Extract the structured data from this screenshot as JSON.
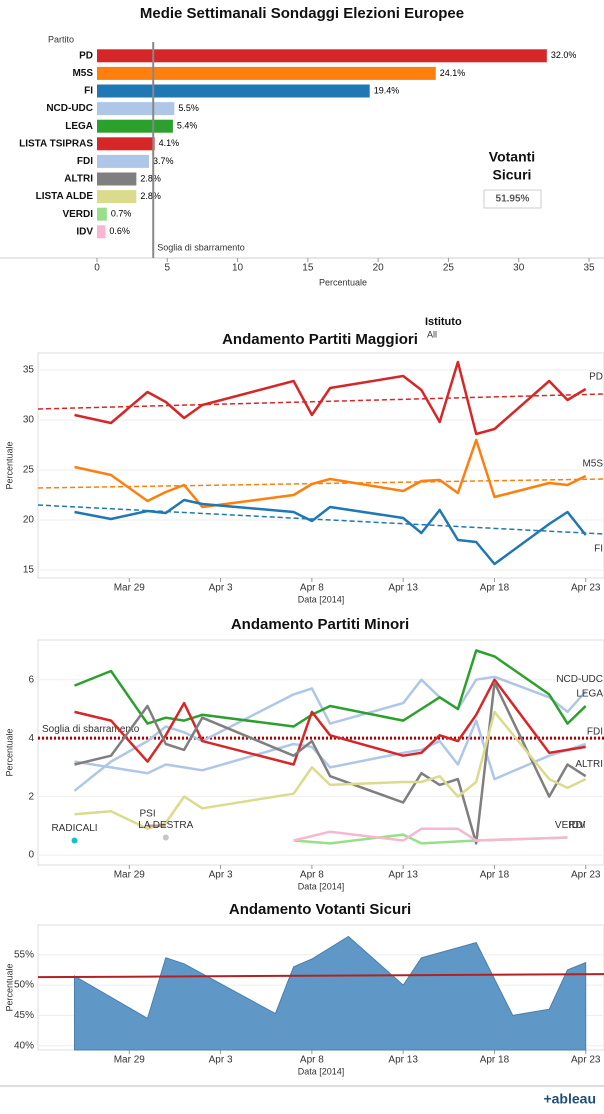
{
  "chart_data": [
    {
      "type": "hbar",
      "title": "Medie Settimanali Sondaggi Elezioni Europee",
      "category_header": "Partito",
      "categories": [
        "PD",
        "M5S",
        "FI",
        "NCD-UDC",
        "LEGA",
        "LISTA TSIPRAS",
        "FDI",
        "ALTRI",
        "LISTA ALDE",
        "VERDI",
        "IDV"
      ],
      "values": [
        32.0,
        24.1,
        19.4,
        5.5,
        5.4,
        4.1,
        3.7,
        2.8,
        2.8,
        0.7,
        0.6
      ],
      "value_labels": [
        "32.0%",
        "24.1%",
        "19.4%",
        "5.5%",
        "5.4%",
        "4.1%",
        "3.7%",
        "2.8%",
        "2.8%",
        "0.7%",
        "0.6%"
      ],
      "colors": [
        "#d62728",
        "#ff7f0e",
        "#1f77b4",
        "#aec7e8",
        "#2ca02c",
        "#d62728",
        "#aec7e8",
        "#7f7f7f",
        "#dbdb8d",
        "#98df8a",
        "#f7b6d2"
      ],
      "xlim": [
        0,
        35
      ],
      "xticks": [
        0,
        5,
        10,
        15,
        20,
        25,
        30,
        35
      ],
      "xlabel": "Percentuale",
      "reference": {
        "value": 4,
        "label": "Soglia di sbarramento"
      },
      "kpi_title": [
        "Votanti",
        "Sicuri"
      ],
      "kpi": {
        "value": 51.95,
        "label": "51.95%"
      }
    },
    {
      "type": "line",
      "title": "Andamento Partiti Maggiori",
      "filter": {
        "label": "Istituto",
        "value": "All"
      },
      "x": [
        "2014-03-26",
        "2014-03-28",
        "2014-03-30",
        "2014-03-31",
        "2014-04-01",
        "2014-04-02",
        "2014-04-07",
        "2014-04-08",
        "2014-04-09",
        "2014-04-13",
        "2014-04-14",
        "2014-04-15",
        "2014-04-16",
        "2014-04-17",
        "2014-04-18",
        "2014-04-21",
        "2014-04-22",
        "2014-04-23"
      ],
      "xlim": [
        "2014-03-24",
        "2014-04-24"
      ],
      "xticks": [
        {
          "value": "2014-03-29",
          "label": "Mar 29"
        },
        {
          "value": "2014-04-03",
          "label": "Apr 3"
        },
        {
          "value": "2014-04-08",
          "label": "Apr 8"
        },
        {
          "value": "2014-04-13",
          "label": "Apr 13"
        },
        {
          "value": "2014-04-18",
          "label": "Apr 18"
        },
        {
          "value": "2014-04-23",
          "label": "Apr 23"
        }
      ],
      "xlabel": "Data [2014]",
      "ylabel": "Percentuale",
      "ylim": [
        14.2,
        36.7
      ],
      "yticks": [
        15,
        20,
        25,
        30,
        35
      ],
      "grid": true,
      "series": [
        {
          "name": "PD",
          "color": "#d62728",
          "values": [
            30.5,
            29.7,
            32.8,
            31.8,
            30.2,
            31.5,
            33.9,
            30.5,
            33.2,
            34.4,
            33.0,
            29.8,
            35.8,
            28.6,
            29.1,
            33.9,
            32.0,
            33.1
          ],
          "trend": [
            31.1,
            32.6
          ]
        },
        {
          "name": "M5S",
          "color": "#ff7f0e",
          "values": [
            25.3,
            24.5,
            21.9,
            22.8,
            23.5,
            21.3,
            22.5,
            23.6,
            24.1,
            22.9,
            23.9,
            24.0,
            22.7,
            28.0,
            22.3,
            23.7,
            23.5,
            24.4
          ],
          "trend": [
            23.2,
            24.1
          ]
        },
        {
          "name": "FI",
          "color": "#1f77b4",
          "values": [
            20.8,
            20.1,
            20.9,
            20.7,
            22.0,
            21.6,
            20.8,
            19.9,
            21.3,
            20.2,
            18.7,
            21.0,
            18.0,
            17.8,
            15.6,
            19.6,
            20.8,
            18.5
          ],
          "trend": [
            21.5,
            18.6
          ]
        }
      ]
    },
    {
      "type": "line",
      "title": "Andamento Partiti Minori",
      "x": [
        "2014-03-26",
        "2014-03-28",
        "2014-03-30",
        "2014-03-31",
        "2014-04-01",
        "2014-04-02",
        "2014-04-07",
        "2014-04-08",
        "2014-04-09",
        "2014-04-13",
        "2014-04-14",
        "2014-04-15",
        "2014-04-16",
        "2014-04-17",
        "2014-04-18",
        "2014-04-21",
        "2014-04-22",
        "2014-04-23"
      ],
      "xlim": [
        "2014-03-24",
        "2014-04-24"
      ],
      "xticks": [
        {
          "value": "2014-03-29",
          "label": "Mar 29"
        },
        {
          "value": "2014-04-03",
          "label": "Apr 3"
        },
        {
          "value": "2014-04-08",
          "label": "Apr 8"
        },
        {
          "value": "2014-04-13",
          "label": "Apr 13"
        },
        {
          "value": "2014-04-18",
          "label": "Apr 18"
        },
        {
          "value": "2014-04-23",
          "label": "Apr 23"
        }
      ],
      "xlabel": "Data [2014]",
      "ylabel": "Percentuale",
      "ylim": [
        -0.34,
        7.36
      ],
      "yticks": [
        0,
        2,
        4,
        6
      ],
      "grid": true,
      "reference": {
        "value": 4,
        "label": "Soglia di sbarramento"
      },
      "series": [
        {
          "name": "NCD-UDC",
          "color": "#aec7e8",
          "values": [
            2.2,
            3.2,
            3.9,
            4.4,
            4.2,
            3.9,
            5.5,
            5.7,
            4.5,
            5.2,
            6.0,
            5.4,
            5.0,
            6.0,
            6.1,
            5.4,
            4.9,
            5.6
          ]
        },
        {
          "name": "LEGA",
          "color": "#2ca02c",
          "values": [
            5.8,
            6.3,
            4.5,
            4.7,
            4.6,
            4.8,
            4.4,
            4.8,
            5.1,
            4.6,
            5.0,
            5.4,
            5.0,
            7.0,
            6.8,
            5.5,
            4.5,
            5.1
          ]
        },
        {
          "name": "FDI",
          "color": "#aec7e8",
          "values": [
            3.2,
            3.0,
            2.8,
            3.1,
            3.0,
            2.9,
            3.8,
            3.7,
            3.0,
            3.5,
            3.6,
            3.9,
            3.1,
            4.6,
            2.6,
            3.4,
            3.6,
            3.8
          ]
        },
        {
          "color": "#d62728",
          "values": [
            4.9,
            4.6,
            3.2,
            4.1,
            5.2,
            3.9,
            3.1,
            4.9,
            4.1,
            3.4,
            3.5,
            4.1,
            3.9,
            4.8,
            6.0,
            3.5,
            3.6,
            3.7
          ]
        },
        {
          "name": "ALTRI",
          "color": "#7f7f7f",
          "values": [
            3.1,
            3.4,
            5.1,
            3.8,
            3.6,
            4.7,
            3.4,
            3.9,
            2.7,
            1.8,
            2.8,
            2.4,
            2.6,
            0.4,
            5.9,
            2.0,
            3.1,
            2.7
          ]
        },
        {
          "color": "#dbdb8d",
          "values": [
            1.4,
            1.5,
            0.9,
            1.1,
            2.0,
            1.6,
            2.1,
            3.0,
            2.4,
            2.5,
            2.5,
            2.7,
            2.0,
            2.5,
            4.9,
            2.6,
            2.3,
            2.6
          ]
        },
        {
          "name": "VERDI",
          "color": "#98df8a",
          "x": [
            "2014-04-07",
            "2014-04-09",
            "2014-04-13",
            "2014-04-14",
            "2014-04-17",
            "2014-04-22"
          ],
          "values": [
            0.5,
            0.4,
            0.7,
            0.4,
            0.5,
            0.6
          ]
        },
        {
          "name": "IDV",
          "color": "#f7b6d2",
          "x": [
            "2014-04-07",
            "2014-04-09",
            "2014-04-13",
            "2014-04-14",
            "2014-04-16",
            "2014-04-17",
            "2014-04-22"
          ],
          "values": [
            0.5,
            0.8,
            0.5,
            0.9,
            0.9,
            0.5,
            0.6
          ]
        },
        {
          "name": "RADICALI",
          "color": "#17becf",
          "x": [
            "2014-03-26"
          ],
          "values": [
            0.5
          ]
        },
        {
          "name": "PSI",
          "color": "#c49c94",
          "x": [
            "2014-03-30",
            "2014-03-31"
          ],
          "values": [
            1.0,
            1.0
          ]
        },
        {
          "name": "LA DESTRA",
          "color": "#c7c7c7",
          "x": [
            "2014-03-31"
          ],
          "values": [
            0.6
          ]
        }
      ]
    },
    {
      "type": "area",
      "title": "Andamento Votanti Sicuri",
      "xlim": [
        "2014-03-24",
        "2014-04-24"
      ],
      "xticks": [
        {
          "value": "2014-03-29",
          "label": "Mar 29"
        },
        {
          "value": "2014-04-03",
          "label": "Apr 3"
        },
        {
          "value": "2014-04-08",
          "label": "Apr 8"
        },
        {
          "value": "2014-04-13",
          "label": "Apr 13"
        },
        {
          "value": "2014-04-18",
          "label": "Apr 18"
        },
        {
          "value": "2014-04-23",
          "label": "Apr 23"
        }
      ],
      "xlabel": "Data [2014]",
      "ylabel": "Percentuale",
      "ylim": [
        39.3,
        59.9
      ],
      "yticks": [
        {
          "value": 40,
          "label": "40%"
        },
        {
          "value": 45,
          "label": "45%"
        },
        {
          "value": 50,
          "label": "50%"
        },
        {
          "value": 55,
          "label": "55%"
        }
      ],
      "grid": true,
      "series": [
        {
          "color": "#5f98c6",
          "x": [
            "2014-03-26",
            "2014-03-30",
            "2014-03-31",
            "2014-04-01",
            "2014-04-06",
            "2014-04-07",
            "2014-04-08",
            "2014-04-10",
            "2014-04-13",
            "2014-04-14",
            "2014-04-17",
            "2014-04-19",
            "2014-04-21",
            "2014-04-22",
            "2014-04-23"
          ],
          "values": [
            51.5,
            44.5,
            54.5,
            53.5,
            45.3,
            53.0,
            54.3,
            58.0,
            50.0,
            54.5,
            57.0,
            45.0,
            46.0,
            52.5,
            53.7
          ],
          "trend": [
            51.3,
            51.8
          ],
          "trend_color": "#b22222"
        }
      ]
    }
  ],
  "logo": "+ableau"
}
